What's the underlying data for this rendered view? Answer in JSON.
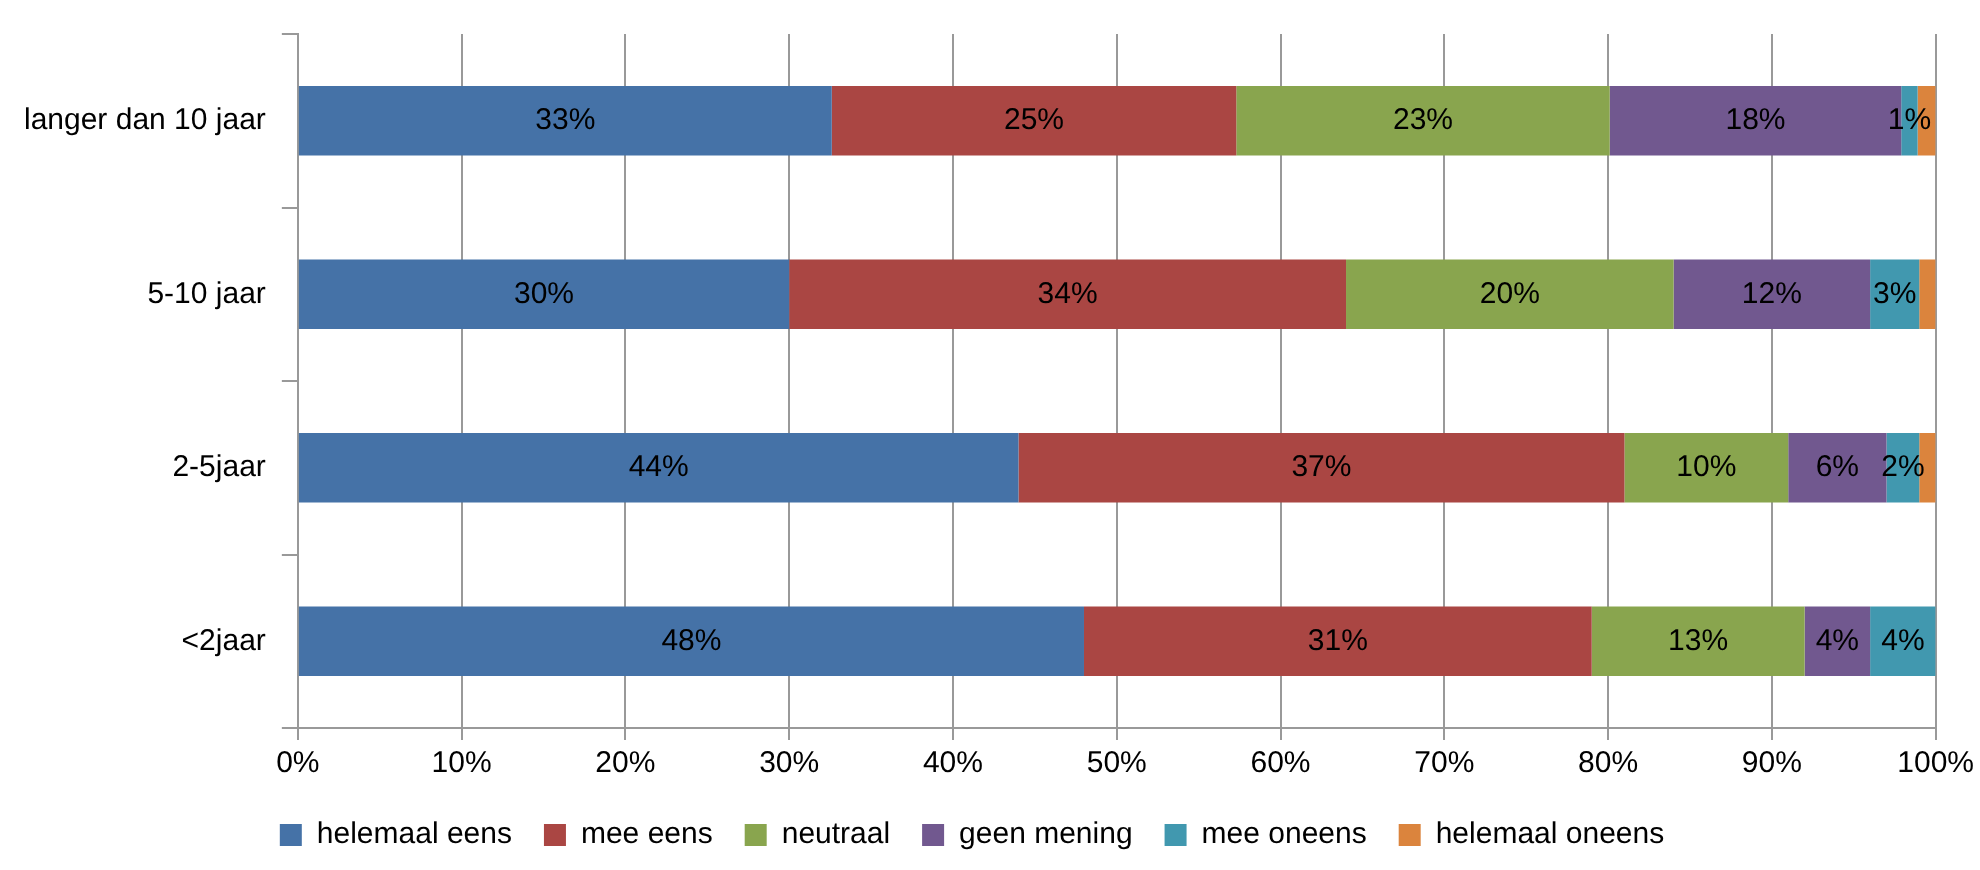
{
  "chart_data": {
    "type": "bar",
    "orientation": "horizontal",
    "stacked": true,
    "categories": [
      "langer dan 10 jaar",
      "5-10 jaar",
      "2-5jaar",
      "<2jaar"
    ],
    "series": [
      {
        "name": "helemaal eens",
        "color": "#4572a7",
        "values": [
          32.6,
          30,
          44,
          48
        ],
        "value_labels": [
          "33%",
          "30%",
          "44%",
          "48%"
        ]
      },
      {
        "name": "mee eens",
        "color": "#aa4643",
        "values": [
          24.7,
          34,
          37,
          31
        ],
        "value_labels": [
          "25%",
          "34%",
          "37%",
          "31%"
        ]
      },
      {
        "name": "neutraal",
        "color": "#89a54e",
        "values": [
          22.8,
          20,
          10,
          13
        ],
        "value_labels": [
          "23%",
          "20%",
          "10%",
          "13%"
        ]
      },
      {
        "name": "geen mening",
        "color": "#71588f",
        "values": [
          17.8,
          12,
          6,
          4
        ],
        "value_labels": [
          "18%",
          "12%",
          "6%",
          "4%"
        ]
      },
      {
        "name": "mee oneens",
        "color": "#4198af",
        "values": [
          1,
          3,
          2,
          4
        ],
        "value_labels": [
          "1%",
          "3%",
          "2%",
          "4%"
        ]
      },
      {
        "name": "helemaal oneens",
        "color": "#db843d",
        "values": [
          1.1,
          1,
          1,
          0
        ],
        "value_labels": [
          null,
          null,
          null,
          null
        ]
      }
    ],
    "xlim": [
      0,
      100
    ],
    "xticks": [
      {
        "value": 0,
        "label": "0%"
      },
      {
        "value": 10,
        "label": "10%"
      },
      {
        "value": 20,
        "label": "20%"
      },
      {
        "value": 30,
        "label": "30%"
      },
      {
        "value": 40,
        "label": "40%"
      },
      {
        "value": 50,
        "label": "50%"
      },
      {
        "value": 60,
        "label": "60%"
      },
      {
        "value": 70,
        "label": "70%"
      },
      {
        "value": 80,
        "label": "80%"
      },
      {
        "value": 90,
        "label": "90%"
      },
      {
        "value": 100,
        "label": "100%"
      }
    ],
    "grid": "x",
    "legend": "bottom"
  }
}
